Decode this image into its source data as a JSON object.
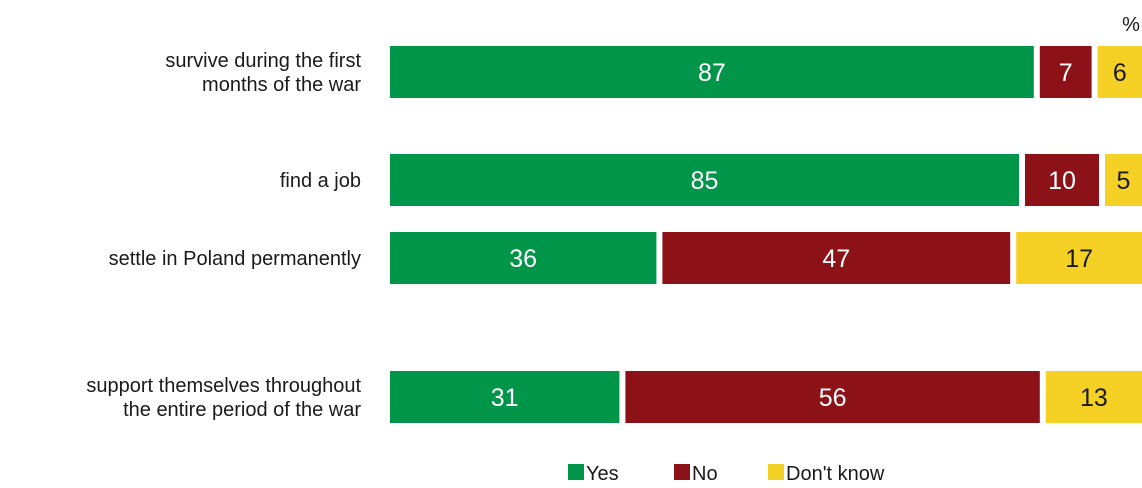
{
  "chart_data": {
    "type": "bar",
    "orientation": "horizontal",
    "stacked": true,
    "unit": "%",
    "categories": [
      [
        "survive during the first",
        "months of the war"
      ],
      [
        "find a job"
      ],
      [
        "settle in Poland permanently"
      ],
      [
        "support themselves throughout",
        "the entire period of the war"
      ]
    ],
    "series": [
      {
        "name": "Yes",
        "color": "#009548",
        "label_color": "#ffffff",
        "values": [
          87,
          85,
          36,
          31
        ]
      },
      {
        "name": "No",
        "color": "#8c1218",
        "label_color": "#ffffff",
        "values": [
          7,
          10,
          47,
          56
        ]
      },
      {
        "name": "Don't know",
        "color": "#f5d126",
        "label_color": "#1a1a1a",
        "values": [
          6,
          5,
          17,
          13
        ]
      }
    ],
    "legend_position": "bottom-center",
    "grid": false,
    "xlim": [
      0,
      100
    ]
  }
}
